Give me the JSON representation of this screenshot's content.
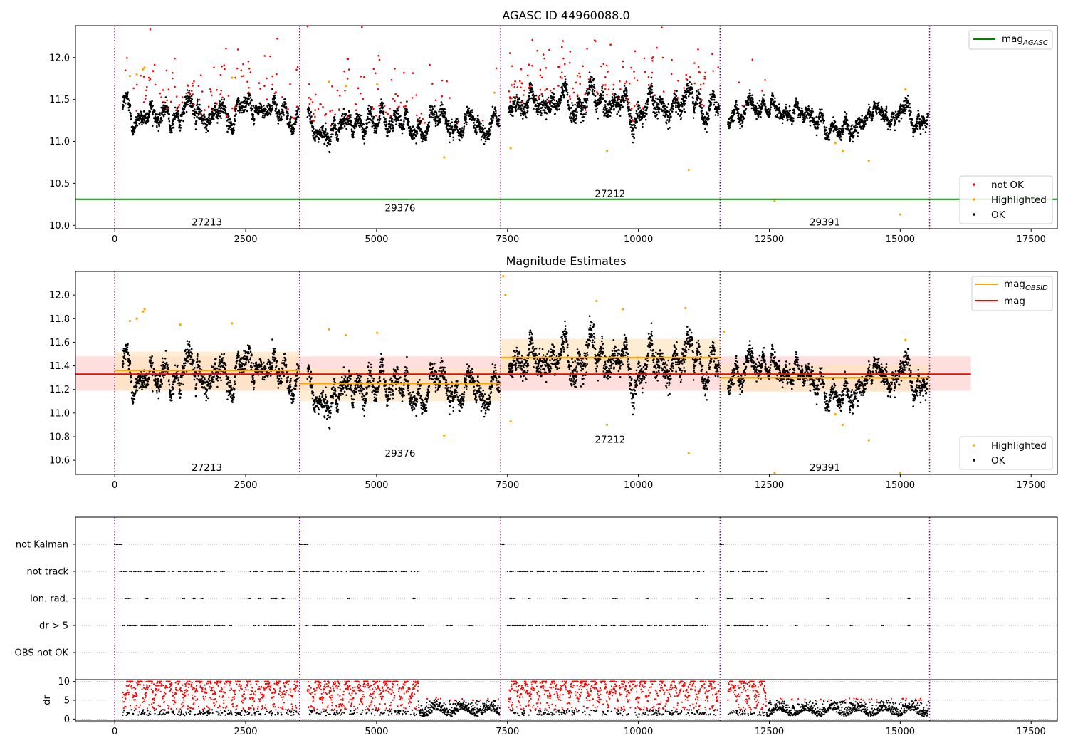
{
  "colors": {
    "ok": "#000000",
    "not_ok": "#ff0000",
    "highlighted": "#ffa500",
    "mag_agasc": "#008000",
    "mag_obsid": "#ffa500",
    "mag": "#ff0000",
    "obs_boundary": "#800080",
    "band_mag": "#ffd0d0",
    "band_obsid": "#ffe6c0"
  },
  "chart_data": [
    {
      "type": "scatter",
      "title": "AGASC ID 44960088.0",
      "xlim": [
        -750,
        18000
      ],
      "ylim": [
        9.96,
        12.38
      ],
      "xticks": [
        0,
        2500,
        5000,
        7500,
        10000,
        12500,
        15000,
        17500
      ],
      "yticks": [
        10.0,
        10.5,
        11.0,
        11.5,
        12.0
      ],
      "legend_upper": {
        "position": "top-right",
        "entries": [
          "mag_AGASC"
        ]
      },
      "legend_lower": {
        "position": "bottom-right",
        "entries": [
          "not OK",
          "Highlighted",
          "OK"
        ]
      },
      "mag_agasc": 10.31,
      "obs_boundaries": [
        0,
        3530,
        7370,
        11560,
        15560
      ],
      "observations": [
        {
          "obsid": "27213",
          "start": 0,
          "end": 3530,
          "label_x": 1760,
          "label_y": 10.04,
          "mag_obsid": 11.36,
          "ok_center": 11.36,
          "ok_amp": 0.12,
          "notok_frac": 0.3
        },
        {
          "obsid": "29376",
          "start": 3530,
          "end": 7370,
          "label_x": 5450,
          "label_y": 10.21,
          "mag_obsid": 11.25,
          "ok_center": 11.26,
          "ok_amp": 0.12,
          "notok_frac": 0.28
        },
        {
          "obsid": "27212",
          "start": 7370,
          "end": 11560,
          "label_x": 9460,
          "label_y": 10.38,
          "mag_obsid": 11.47,
          "ok_center": 11.44,
          "ok_amp": 0.14,
          "notok_frac": 0.35
        },
        {
          "obsid": "29391",
          "start": 11560,
          "end": 15560,
          "label_x": 13560,
          "label_y": 10.04,
          "mag_obsid": 11.3,
          "ok_center": 11.3,
          "ok_amp": 0.1,
          "notok_frac": 0.08
        }
      ],
      "highlighted_points": [
        [
          290,
          11.78
        ],
        [
          420,
          11.8
        ],
        [
          540,
          11.86
        ],
        [
          570,
          11.88
        ],
        [
          2240,
          11.76
        ],
        [
          4090,
          11.71
        ],
        [
          4410,
          11.66
        ],
        [
          5010,
          11.68
        ],
        [
          6290,
          10.81
        ],
        [
          7250,
          11.58
        ],
        [
          7560,
          10.92
        ],
        [
          9400,
          10.89
        ],
        [
          10960,
          10.66
        ],
        [
          12600,
          10.29
        ],
        [
          13760,
          10.98
        ],
        [
          13900,
          10.89
        ],
        [
          14400,
          10.77
        ],
        [
          15000,
          10.13
        ],
        [
          15100,
          11.62
        ]
      ]
    },
    {
      "type": "scatter",
      "title": "Magnitude Estimates",
      "xlim": [
        -750,
        18000
      ],
      "ylim": [
        10.48,
        12.2
      ],
      "xticks": [
        0,
        2500,
        5000,
        7500,
        10000,
        12500,
        15000,
        17500
      ],
      "yticks": [
        10.6,
        10.8,
        11.0,
        11.2,
        11.4,
        11.6,
        11.8,
        12.0
      ],
      "legend_upper": {
        "position": "top-right",
        "entries": [
          "mag_OBSID",
          "mag"
        ]
      },
      "legend_lower": {
        "position": "bottom-right",
        "entries": [
          "Highlighted",
          "OK"
        ]
      },
      "mag": 11.33,
      "mag_band": [
        11.19,
        11.48
      ],
      "mag_xrange": [
        -750,
        16350
      ],
      "obsid_bands": [
        [
          11.19,
          11.52
        ],
        [
          11.1,
          11.38
        ],
        [
          11.33,
          11.63
        ],
        [
          11.18,
          11.41
        ]
      ],
      "obs_labels": [
        {
          "text": "27213",
          "x": 1760,
          "y": 10.54
        },
        {
          "text": "29376",
          "x": 5450,
          "y": 10.66
        },
        {
          "text": "27212",
          "x": 9460,
          "y": 10.78
        },
        {
          "text": "29391",
          "x": 13560,
          "y": 10.54
        }
      ],
      "highlighted_points": [
        [
          290,
          11.78
        ],
        [
          420,
          11.8
        ],
        [
          540,
          11.86
        ],
        [
          570,
          11.88
        ],
        [
          1250,
          11.75
        ],
        [
          2240,
          11.76
        ],
        [
          4090,
          11.71
        ],
        [
          4410,
          11.66
        ],
        [
          5010,
          11.68
        ],
        [
          6290,
          10.81
        ],
        [
          7420,
          12.16
        ],
        [
          7460,
          12.0
        ],
        [
          7560,
          10.93
        ],
        [
          9200,
          11.95
        ],
        [
          9400,
          10.9
        ],
        [
          9700,
          11.88
        ],
        [
          10900,
          11.89
        ],
        [
          10960,
          10.66
        ],
        [
          11630,
          11.69
        ],
        [
          12600,
          10.49
        ],
        [
          13760,
          10.99
        ],
        [
          13900,
          10.9
        ],
        [
          14400,
          10.77
        ],
        [
          15000,
          10.49
        ],
        [
          15100,
          11.62
        ]
      ]
    },
    {
      "type": "scatter",
      "title": "",
      "xlim": [
        -750,
        18000
      ],
      "categories": [
        "not Kalman",
        "not track",
        "Ion. rad.",
        "dr > 5",
        "OBS not OK"
      ],
      "rows": [
        {
          "label": "not Kalman",
          "segments": [
            [
              0,
              130
            ],
            [
              3530,
              3680
            ],
            [
              7370,
              7450
            ],
            [
              11560,
              11640
            ]
          ]
        },
        {
          "label": "not track",
          "segments": [
            [
              100,
              2100
            ],
            [
              2550,
              3450
            ],
            [
              3600,
              5800
            ],
            [
              7500,
              11200
            ],
            [
              11700,
              12450
            ]
          ]
        },
        {
          "label": "Ion. rad.",
          "segments": [
            [
              200,
              300
            ],
            [
              600,
              650
            ],
            [
              1300,
              1350
            ],
            [
              1500,
              1550
            ],
            [
              1650,
              1700
            ],
            [
              2550,
              2600
            ],
            [
              2750,
              2800
            ],
            [
              3000,
              3100
            ],
            [
              3200,
              3250
            ],
            [
              4450,
              4500
            ],
            [
              5700,
              5750
            ],
            [
              7550,
              7650
            ],
            [
              7900,
              7950
            ],
            [
              8550,
              8650
            ],
            [
              8950,
              9000
            ],
            [
              9500,
              9600
            ],
            [
              10150,
              10200
            ],
            [
              11100,
              11150
            ],
            [
              11700,
              11800
            ],
            [
              12150,
              12200
            ],
            [
              12350,
              12400
            ],
            [
              13600,
              13650
            ],
            [
              15150,
              15200
            ]
          ]
        },
        {
          "label": "dr > 5",
          "segments": [
            [
              150,
              2250
            ],
            [
              2600,
              3450
            ],
            [
              3600,
              5900
            ],
            [
              6350,
              6450
            ],
            [
              6750,
              6850
            ],
            [
              7500,
              11350
            ],
            [
              11700,
              12450
            ],
            [
              13000,
              13050
            ],
            [
              13600,
              13650
            ],
            [
              14050,
              14100
            ],
            [
              14650,
              14700
            ],
            [
              15150,
              15200
            ],
            [
              15530,
              15560
            ]
          ]
        },
        {
          "label": "OBS not OK",
          "segments": []
        }
      ],
      "obs_boundaries": [
        0,
        3530,
        7370,
        11560,
        15560
      ]
    },
    {
      "type": "scatter",
      "title": "",
      "ylabel": "dr",
      "xlim": [
        -750,
        18000
      ],
      "ylim": [
        -0.5,
        10.5
      ],
      "xticks": [
        0,
        2500,
        5000,
        7500,
        10000,
        12500,
        15000,
        17500
      ],
      "yticks": [
        0,
        5,
        10
      ],
      "threshold": 5,
      "observations": [
        {
          "start": 0,
          "end": 3530,
          "red_until": 3530
        },
        {
          "start": 3530,
          "end": 7370,
          "red_until": 5800
        },
        {
          "start": 7370,
          "end": 11560,
          "red_until": 11560
        },
        {
          "start": 11560,
          "end": 15560,
          "red_until": 12450
        }
      ],
      "obs_boundaries": [
        0,
        3530,
        7370,
        11560,
        15560
      ]
    }
  ],
  "legend_labels": {
    "mag_agasc_main": "mag",
    "mag_agasc_sub": "AGASC",
    "mag_obsid_main": "mag",
    "mag_obsid_sub": "OBSID",
    "mag": "mag",
    "not_ok": "not OK",
    "highlighted": "Highlighted",
    "ok": "OK"
  }
}
